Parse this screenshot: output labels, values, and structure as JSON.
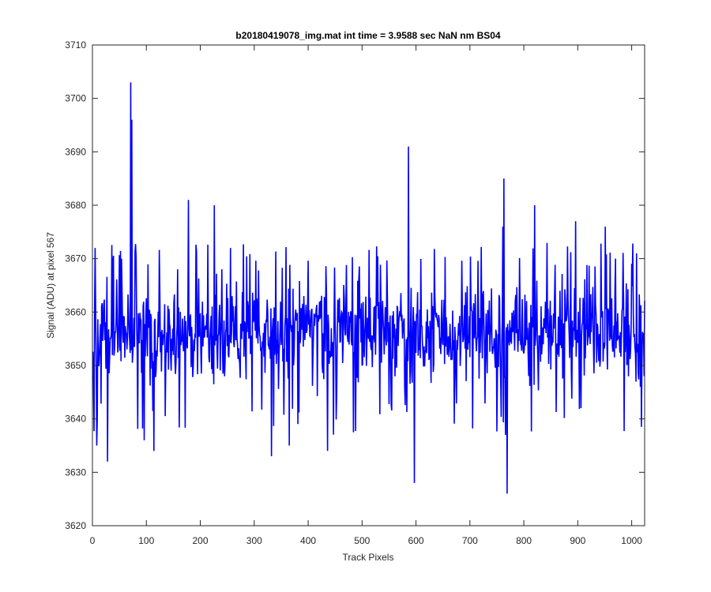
{
  "chart_data": {
    "type": "line",
    "title": "b20180419078_img.mat int time = 3.9588 sec  NaN nm BS04",
    "xlabel": "Track Pixels",
    "ylabel": "Signal (ADU) at pixel 567",
    "xlim": [
      0,
      1024
    ],
    "ylim": [
      3620,
      3710
    ],
    "xticks": [
      0,
      100,
      200,
      300,
      400,
      500,
      600,
      700,
      800,
      900,
      1000
    ],
    "yticks": [
      3620,
      3630,
      3640,
      3650,
      3660,
      3670,
      3680,
      3690,
      3700,
      3710
    ],
    "grid": false,
    "legend": "none",
    "series_color": "#0000ff",
    "series": [
      {
        "n_points": 1024,
        "baseline": 3656,
        "noise_band": [
          3643,
          3668
        ],
        "peaks": [
          {
            "x": 70,
            "y": 3703
          },
          {
            "x": 72,
            "y": 3696
          },
          {
            "x": 585,
            "y": 3691
          },
          {
            "x": 762,
            "y": 3685
          },
          {
            "x": 177,
            "y": 3681
          },
          {
            "x": 225,
            "y": 3680
          },
          {
            "x": 819,
            "y": 3680
          },
          {
            "x": 760,
            "y": 3676
          },
          {
            "x": 895,
            "y": 3677
          },
          {
            "x": 950,
            "y": 3676
          },
          {
            "x": 4,
            "y": 3672
          },
          {
            "x": 1008,
            "y": 3671
          }
        ],
        "troughs": [
          {
            "x": 768,
            "y": 3626
          },
          {
            "x": 596,
            "y": 3628
          },
          {
            "x": 27,
            "y": 3632
          },
          {
            "x": 331,
            "y": 3633
          },
          {
            "x": 435,
            "y": 3634
          },
          {
            "x": 113,
            "y": 3634
          },
          {
            "x": 364,
            "y": 3635
          },
          {
            "x": 7,
            "y": 3635
          },
          {
            "x": 95,
            "y": 3636
          },
          {
            "x": 765,
            "y": 3637
          },
          {
            "x": 1022,
            "y": 3648
          }
        ]
      }
    ]
  }
}
